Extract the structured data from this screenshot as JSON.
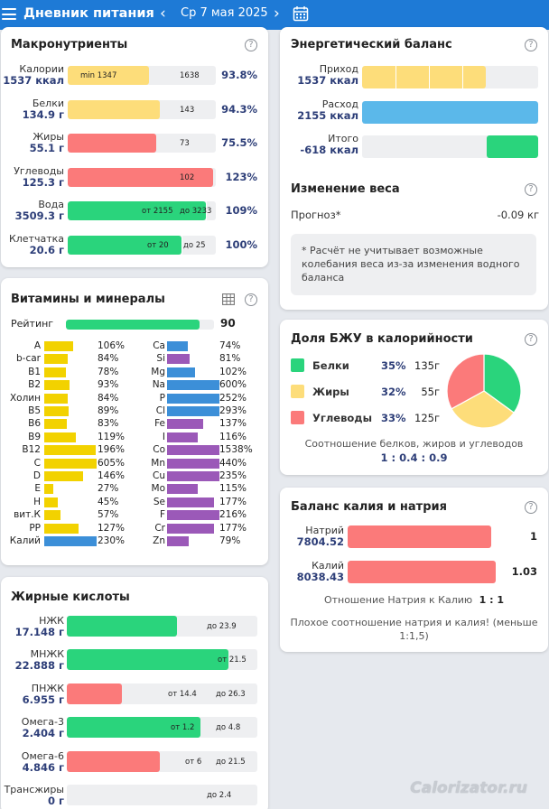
{
  "header": {
    "title": "Дневник питания",
    "prev": "‹",
    "next": "›",
    "date": "Ср 7 мая 2025"
  },
  "colors": {
    "green": "#2ad47c",
    "yellow": "#fddd7a",
    "red": "#fb7a7a",
    "blue": "#5bb8ea",
    "vit_yellow": "#f2d200",
    "min_blue": "#3c8fd8",
    "min_purple": "#9b59b8",
    "header": "#1e7ad6"
  },
  "macros": {
    "title": "Макронутриенты",
    "rows": [
      {
        "label": "Калории",
        "value": "1537 ккал",
        "note_left": "min 1347",
        "note_right": "1638",
        "percent": "93.8%",
        "fill": 0.55,
        "color": "yellow"
      },
      {
        "label": "Белки",
        "value": "134.9 г",
        "note_left": "",
        "note_right": "143",
        "percent": "94.3%",
        "fill": 0.62,
        "color": "yellow"
      },
      {
        "label": "Жиры",
        "value": "55.1 г",
        "note_left": "",
        "note_right": "73",
        "percent": "75.5%",
        "fill": 0.6,
        "color": "red"
      },
      {
        "label": "Углеводы",
        "value": "125.3 г",
        "note_left": "",
        "note_right": "102",
        "percent": "123%",
        "fill": 0.98,
        "color": "red"
      },
      {
        "label": "Вода",
        "value": "3509.3 г",
        "note_left": "от 2155",
        "note_right": "до 3233",
        "percent": "109%",
        "fill": 0.93,
        "color": "green"
      },
      {
        "label": "Клетчатка",
        "value": "20.6 г",
        "note_left": "от 20",
        "note_right": "до 25",
        "percent": "100%",
        "fill": 0.77,
        "color": "green"
      }
    ]
  },
  "vitamins": {
    "title": "Витамины и минералы",
    "rating_label": "Рейтинг",
    "rating_value": "90",
    "left": [
      {
        "name": "A",
        "pct": "106%",
        "v": 1.06
      },
      {
        "name": "b-car",
        "pct": "84%",
        "v": 0.84
      },
      {
        "name": "B1",
        "pct": "78%",
        "v": 0.78
      },
      {
        "name": "B2",
        "pct": "93%",
        "v": 0.93
      },
      {
        "name": "Холин",
        "pct": "84%",
        "v": 0.84
      },
      {
        "name": "B5",
        "pct": "89%",
        "v": 0.89
      },
      {
        "name": "B6",
        "pct": "83%",
        "v": 0.83
      },
      {
        "name": "B9",
        "pct": "119%",
        "v": 1.19
      },
      {
        "name": "B12",
        "pct": "196%",
        "v": 1.96
      },
      {
        "name": "C",
        "pct": "605%",
        "v": 6.05
      },
      {
        "name": "D",
        "pct": "146%",
        "v": 1.46
      },
      {
        "name": "E",
        "pct": "27%",
        "v": 0.27
      },
      {
        "name": "H",
        "pct": "45%",
        "v": 0.45
      },
      {
        "name": "вит.К",
        "pct": "57%",
        "v": 0.57
      },
      {
        "name": "PP",
        "pct": "127%",
        "v": 1.27
      },
      {
        "name": "Калий",
        "pct": "230%",
        "v": 2.3,
        "blue": true
      }
    ],
    "right": [
      {
        "name": "Ca",
        "pct": "74%",
        "v": 0.74,
        "blue": true
      },
      {
        "name": "Si",
        "pct": "81%",
        "v": 0.81
      },
      {
        "name": "Mg",
        "pct": "102%",
        "v": 1.02,
        "blue": true
      },
      {
        "name": "Na",
        "pct": "600%",
        "v": 6.0,
        "blue": true
      },
      {
        "name": "P",
        "pct": "252%",
        "v": 2.52,
        "blue": true
      },
      {
        "name": "Cl",
        "pct": "293%",
        "v": 2.93,
        "blue": true
      },
      {
        "name": "Fe",
        "pct": "137%",
        "v": 1.37
      },
      {
        "name": "I",
        "pct": "116%",
        "v": 1.16
      },
      {
        "name": "Co",
        "pct": "1538%",
        "v": 15.38
      },
      {
        "name": "Mn",
        "pct": "440%",
        "v": 4.4
      },
      {
        "name": "Cu",
        "pct": "235%",
        "v": 2.35
      },
      {
        "name": "Mo",
        "pct": "115%",
        "v": 1.15
      },
      {
        "name": "Se",
        "pct": "177%",
        "v": 1.77
      },
      {
        "name": "F",
        "pct": "216%",
        "v": 2.16
      },
      {
        "name": "Cr",
        "pct": "177%",
        "v": 1.77
      },
      {
        "name": "Zn",
        "pct": "79%",
        "v": 0.79
      }
    ]
  },
  "fats": {
    "title": "Жирные кислоты",
    "rows": [
      {
        "label": "НЖК",
        "value": "17.148 г",
        "note_left": "",
        "note_right": "до 23.9",
        "fill": 0.58,
        "color": "green"
      },
      {
        "label": "МНЖК",
        "value": "22.888 г",
        "note_left": "",
        "note_right": "от 21.5",
        "fill": 0.85,
        "color": "green"
      },
      {
        "label": "ПНЖК",
        "value": "6.955 г",
        "note_left": "от 14.4",
        "note_right": "до 26.3",
        "fill": 0.29,
        "color": "red"
      },
      {
        "label": "Омега-3",
        "value": "2.404 г",
        "note_left": "от 1.2",
        "note_right": "до 4.8",
        "fill": 0.7,
        "color": "green"
      },
      {
        "label": "Омега-6",
        "value": "4.846 г",
        "note_left": "от 6",
        "note_right": "до 21.5",
        "fill": 0.49,
        "color": "red"
      },
      {
        "label": "Трансжиры",
        "value": "0 г",
        "note_left": "",
        "note_right": "до 2.4",
        "fill": 0.0,
        "color": "green"
      }
    ]
  },
  "energy": {
    "title": "Энергетический баланс",
    "rows": [
      {
        "label": "Приход",
        "value": "1537 ккал",
        "fill": 0.7,
        "color": "yellow"
      },
      {
        "label": "Расход",
        "value": "2155 ккал",
        "fill": 1.0,
        "color": "blue"
      },
      {
        "label": "Итого",
        "value": "-618 ккал",
        "fill": 0.29,
        "color": "green"
      }
    ]
  },
  "weight": {
    "title": "Изменение веса",
    "forecast_label": "Прогноз*",
    "forecast_value": "-0.09 кг",
    "footnote": "* Расчёт не учитывает возможные колебания веса из-за изменения водного баланса"
  },
  "bju": {
    "title": "Доля БЖУ в калорийности",
    "rows": [
      {
        "name": "Белки",
        "pct": "35%",
        "grams": "135г",
        "share": 0.35,
        "color": "green"
      },
      {
        "name": "Жиры",
        "pct": "32%",
        "grams": "55г",
        "share": 0.32,
        "color": "yellow"
      },
      {
        "name": "Углеводы",
        "pct": "33%",
        "grams": "125г",
        "share": 0.33,
        "color": "red"
      }
    ],
    "ratio_caption": "Соотношение белков, жиров и углеводов",
    "ratio_value": "1 : 0.4 : 0.9"
  },
  "kna": {
    "title": "Баланс калия и натрия",
    "rows": [
      {
        "label": "Натрий",
        "value": "7804.52",
        "ratio": "1",
        "fill": 0.96
      },
      {
        "label": "Калий",
        "value": "8038.43",
        "ratio": "1.03",
        "fill": 0.99
      }
    ],
    "ratio_caption": "Отношение Натрия к Калию",
    "ratio_value": "1 : 1",
    "warning": "Плохое соотношение натрия и калия! (меньше 1:1,5)"
  },
  "watermark": "Calorizator.ru"
}
